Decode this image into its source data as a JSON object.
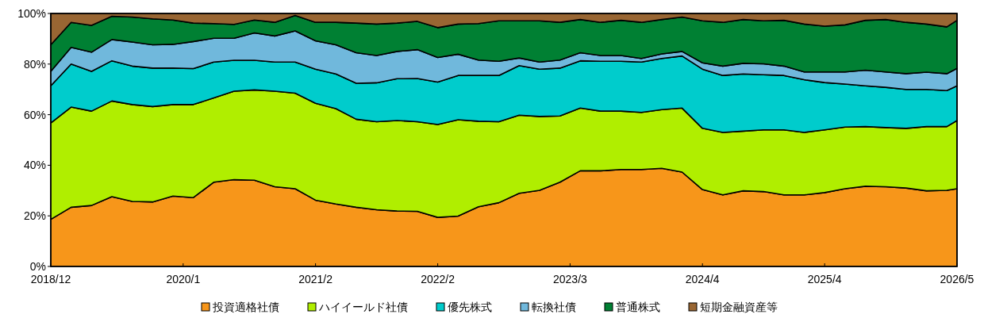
{
  "chart_data": {
    "type": "area",
    "stacked": true,
    "legend": "bottom",
    "x": [
      "2018-12",
      "2019-02",
      "2019-04",
      "2019-06",
      "2019-08",
      "2019-10",
      "2019-12",
      "2020-02",
      "2020-04",
      "2020-06",
      "2020-08",
      "2020-10",
      "2020-12",
      "2021-02",
      "2021-04",
      "2021-06",
      "2021-08",
      "2021-10",
      "2021-12",
      "2022-02",
      "2022-04",
      "2022-06",
      "2022-08",
      "2022-10",
      "2022-12",
      "2023-02",
      "2023-04",
      "2023-06",
      "2023-08",
      "2023-10",
      "2023-12",
      "2024-02",
      "2024-04",
      "2024-06",
      "2024-08",
      "2024-10",
      "2024-12",
      "2025-02",
      "2025-04",
      "2025-06",
      "2025-08",
      "2025-10",
      "2025-12",
      "2026-02",
      "2026-04",
      "2026-05"
    ],
    "xlim": [
      "2018-12",
      "2026-05"
    ],
    "xticks": [
      {
        "value": "2018-12",
        "label": "2018/12"
      },
      {
        "value": "2020-01",
        "label": "2020/1"
      },
      {
        "value": "2021-02",
        "label": "2021/2"
      },
      {
        "value": "2022-02",
        "label": "2022/2"
      },
      {
        "value": "2023-03",
        "label": "2023/3"
      },
      {
        "value": "2024-04",
        "label": "2024/4"
      },
      {
        "value": "2025-04",
        "label": "2025/4"
      },
      {
        "value": "2026-05",
        "label": "2026/5"
      }
    ],
    "ylim": [
      0,
      100
    ],
    "yticks": [
      {
        "value": 0,
        "label": "0%"
      },
      {
        "value": 20,
        "label": "20%"
      },
      {
        "value": 40,
        "label": "40%"
      },
      {
        "value": 60,
        "label": "60%"
      },
      {
        "value": 80,
        "label": "80%"
      },
      {
        "value": 100,
        "label": "100%"
      }
    ],
    "series": [
      {
        "name": "投資適格社債",
        "color": "#f7961a",
        "values": [
          18.6,
          23.4,
          24.1,
          27.6,
          25.7,
          25.5,
          27.8,
          27.2,
          33.3,
          34.3,
          34.1,
          31.5,
          30.7,
          26.2,
          24.7,
          23.4,
          22.4,
          21.9,
          21.8,
          19.4,
          19.9,
          23.6,
          25.2,
          28.9,
          30.1,
          33.3,
          37.8,
          37.8,
          38.3,
          38.3,
          38.8,
          37.3,
          30.4,
          28.3,
          29.9,
          29.6,
          28.3,
          28.3,
          29.2,
          30.7,
          31.7,
          31.5,
          31.0,
          29.9,
          30.1,
          30.7
        ]
      },
      {
        "name": "ハイイールド社債",
        "color": "#b0ee00",
        "values": [
          38.1,
          39.6,
          37.3,
          37.8,
          38.3,
          37.7,
          36.2,
          36.8,
          33.3,
          35.0,
          35.7,
          37.8,
          37.8,
          38.3,
          37.7,
          34.8,
          34.8,
          35.8,
          35.4,
          36.7,
          38.1,
          33.8,
          32.0,
          30.9,
          29.2,
          26.2,
          24.8,
          23.6,
          23.1,
          22.6,
          23.2,
          25.3,
          24.2,
          24.7,
          23.6,
          24.4,
          25.7,
          24.7,
          24.8,
          24.4,
          23.6,
          23.4,
          23.6,
          25.4,
          25.2,
          27.0
        ]
      },
      {
        "name": "優先株式",
        "color": "#00cccc",
        "values": [
          14.7,
          17.0,
          15.7,
          15.9,
          15.2,
          15.2,
          14.4,
          14.2,
          14.2,
          12.2,
          11.7,
          11.5,
          12.3,
          13.5,
          13.7,
          14.2,
          15.4,
          16.5,
          17.1,
          16.8,
          17.5,
          18.1,
          18.3,
          19.6,
          18.7,
          18.9,
          18.7,
          19.7,
          19.7,
          19.9,
          20.2,
          20.6,
          23.4,
          22.5,
          22.6,
          21.8,
          21.5,
          20.8,
          18.7,
          17.0,
          16.1,
          15.9,
          15.4,
          14.7,
          14.2,
          13.7
        ]
      },
      {
        "name": "転換社債",
        "color": "#70b8dc",
        "values": [
          5.7,
          6.6,
          7.6,
          8.4,
          9.5,
          9.2,
          9.4,
          10.7,
          9.4,
          8.7,
          10.8,
          10.3,
          12.3,
          11.2,
          11.5,
          12.1,
          10.8,
          10.8,
          11.4,
          9.7,
          8.4,
          6.1,
          5.6,
          3.0,
          2.8,
          3.2,
          3.2,
          2.3,
          2.3,
          1.4,
          1.8,
          1.8,
          2.5,
          3.7,
          4.2,
          4.3,
          3.7,
          3.1,
          4.2,
          4.8,
          6.2,
          6.1,
          6.2,
          6.8,
          6.7,
          6.9
        ]
      },
      {
        "name": "普通株式",
        "color": "#008033",
        "values": [
          10.5,
          9.9,
          10.6,
          9.2,
          9.9,
          10.3,
          9.6,
          7.3,
          5.8,
          5.5,
          5.1,
          5.4,
          6.1,
          7.3,
          8.9,
          11.7,
          12.4,
          11.2,
          11.2,
          11.8,
          11.9,
          14.4,
          16.0,
          14.7,
          16.3,
          14.9,
          13.1,
          13.1,
          13.9,
          14.3,
          13.6,
          13.6,
          16.6,
          17.3,
          17.3,
          17.0,
          18.1,
          18.9,
          18.1,
          18.6,
          19.7,
          20.7,
          20.3,
          19.0,
          18.5,
          19.0
        ]
      },
      {
        "name": "短期金融資産等",
        "color": "#996633",
        "values": [
          12.4,
          3.5,
          4.7,
          1.1,
          1.4,
          2.1,
          2.6,
          3.8,
          4.0,
          4.3,
          2.6,
          3.5,
          0.8,
          3.5,
          3.5,
          3.8,
          4.2,
          3.8,
          3.1,
          5.6,
          4.2,
          4.0,
          2.9,
          2.9,
          2.9,
          3.5,
          2.4,
          3.5,
          2.7,
          3.5,
          2.4,
          1.4,
          2.9,
          3.5,
          2.4,
          2.9,
          2.7,
          4.2,
          5.0,
          4.5,
          2.7,
          2.4,
          3.5,
          4.2,
          5.3,
          2.7
        ]
      }
    ]
  }
}
